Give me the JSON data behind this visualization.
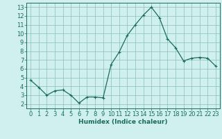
{
  "x": [
    0,
    1,
    2,
    3,
    4,
    5,
    6,
    7,
    8,
    9,
    10,
    11,
    12,
    13,
    14,
    15,
    16,
    17,
    18,
    19,
    20,
    21,
    22,
    23
  ],
  "y": [
    4.7,
    3.9,
    3.0,
    3.5,
    3.6,
    3.0,
    2.1,
    2.8,
    2.8,
    2.7,
    6.5,
    7.9,
    9.8,
    11.0,
    12.1,
    13.0,
    11.8,
    9.4,
    8.4,
    6.9,
    7.2,
    7.3,
    7.2,
    6.3
  ],
  "line_color": "#1a6b5a",
  "marker": "+",
  "marker_size": 3,
  "linewidth": 0.9,
  "xlabel": "Humidex (Indice chaleur)",
  "xlabel_fontsize": 6.5,
  "bg_color": "#cff0ee",
  "grid_color": "#8abfba",
  "xlim": [
    -0.5,
    23.5
  ],
  "ylim": [
    1.5,
    13.5
  ],
  "yticks": [
    2,
    3,
    4,
    5,
    6,
    7,
    8,
    9,
    10,
    11,
    12,
    13
  ],
  "xticks": [
    0,
    1,
    2,
    3,
    4,
    5,
    6,
    7,
    8,
    9,
    10,
    11,
    12,
    13,
    14,
    15,
    16,
    17,
    18,
    19,
    20,
    21,
    22,
    23
  ],
  "tick_label_fontsize": 6,
  "tick_color": "#1a6b5a"
}
